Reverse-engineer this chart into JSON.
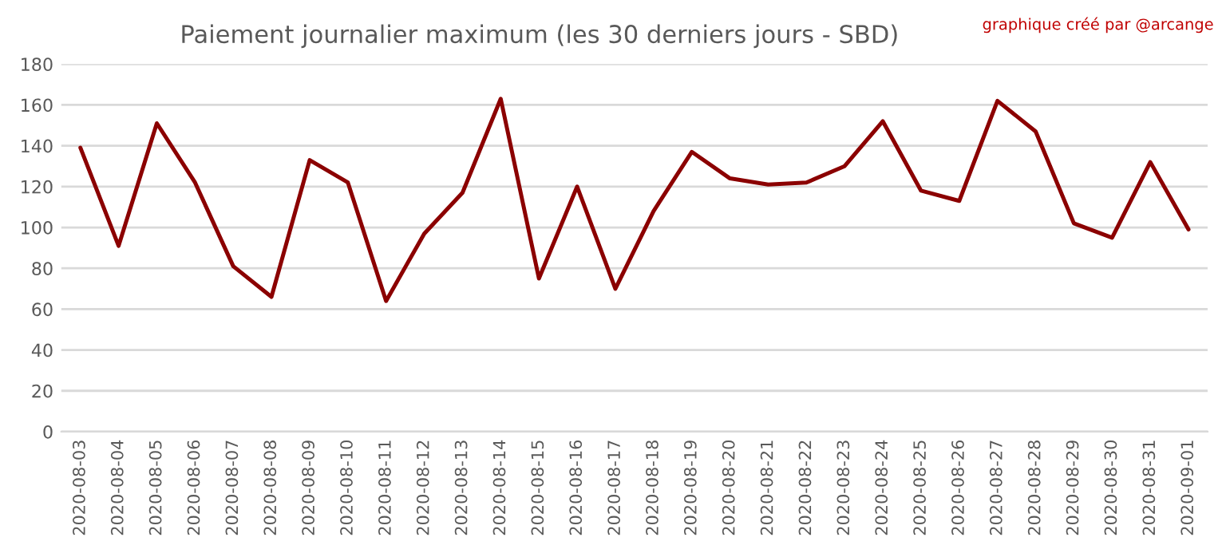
{
  "chart_data": {
    "type": "line",
    "title": "Paiement journalier maximum (les 30 derniers jours - SBD)",
    "annotations": [
      "graphique créé par @arcange"
    ],
    "categories": [
      "2020-08-03",
      "2020-08-04",
      "2020-08-05",
      "2020-08-06",
      "2020-08-07",
      "2020-08-08",
      "2020-08-09",
      "2020-08-10",
      "2020-08-11",
      "2020-08-12",
      "2020-08-13",
      "2020-08-14",
      "2020-08-15",
      "2020-08-16",
      "2020-08-17",
      "2020-08-18",
      "2020-08-19",
      "2020-08-20",
      "2020-08-21",
      "2020-08-22",
      "2020-08-23",
      "2020-08-24",
      "2020-08-25",
      "2020-08-26",
      "2020-08-27",
      "2020-08-28",
      "2020-08-29",
      "2020-08-30",
      "2020-08-31",
      "2020-09-01"
    ],
    "series": [
      {
        "color": "#8b0000",
        "values": [
          139,
          91,
          151,
          122,
          81,
          66,
          133,
          122,
          64,
          97,
          117,
          163,
          75,
          120,
          70,
          108,
          137,
          124,
          121,
          122,
          130,
          152,
          118,
          113,
          162,
          147,
          102,
          95,
          132,
          99
        ]
      }
    ],
    "ylim": [
      0,
      180
    ],
    "yticks": [
      0,
      20,
      40,
      60,
      80,
      100,
      120,
      140,
      160,
      180
    ],
    "grid": "y",
    "marker": "none",
    "line_style": "solid",
    "legend": false
  }
}
